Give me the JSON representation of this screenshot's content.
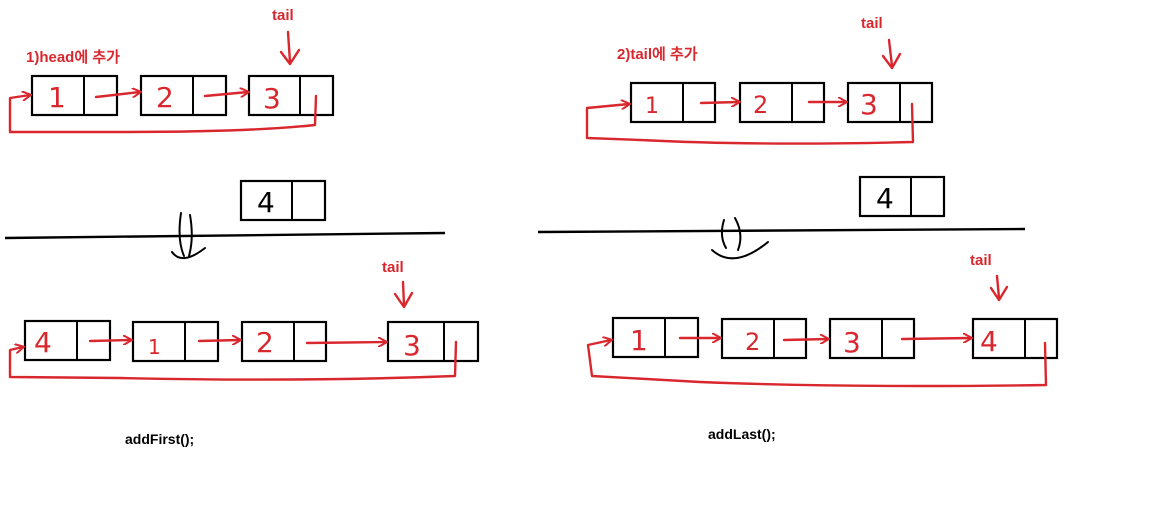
{
  "left": {
    "heading": "1)head에 추가",
    "tail_label_top": "tail",
    "tail_label_bottom": "tail",
    "caption": "addFirst();",
    "before_nodes": [
      "1",
      "2",
      "3"
    ],
    "new_node": "4",
    "after_nodes": [
      "4",
      "1",
      "2",
      "3"
    ]
  },
  "right": {
    "heading": "2)tail에 추가",
    "tail_label_top": "tail",
    "tail_label_bottom": "tail",
    "caption": "addLast();",
    "before_nodes": [
      "1",
      "2",
      "3"
    ],
    "new_node": "4",
    "after_nodes": [
      "1",
      "2",
      "3",
      "4"
    ]
  },
  "colors": {
    "ink": "#000000",
    "accent": "#d9272e"
  }
}
